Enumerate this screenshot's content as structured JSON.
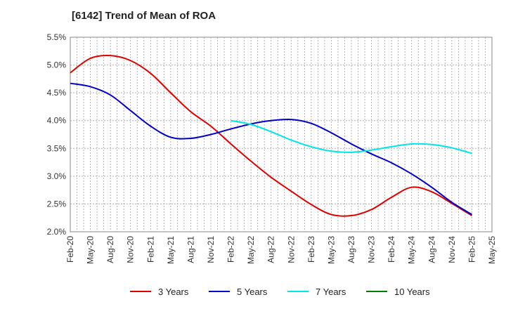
{
  "chart_data": {
    "type": "line",
    "title": "[6142]  Trend of Mean of ROA",
    "xlabel": "",
    "ylabel": "",
    "categories": [
      "Feb-20",
      "May-20",
      "Aug-20",
      "Nov-20",
      "Feb-21",
      "May-21",
      "Aug-21",
      "Nov-21",
      "Feb-22",
      "May-22",
      "Aug-22",
      "Nov-22",
      "Feb-23",
      "May-23",
      "Aug-23",
      "Nov-23",
      "Feb-24",
      "May-24",
      "Aug-24",
      "Nov-24",
      "Feb-25",
      "May-25"
    ],
    "yticks": [
      "2.0%",
      "2.5%",
      "3.0%",
      "3.5%",
      "4.0%",
      "4.5%",
      "5.0%",
      "5.5%"
    ],
    "ylim": [
      2.0,
      5.5
    ],
    "grid": true,
    "series": [
      {
        "name": "3 Years",
        "color": "#e00000",
        "values": [
          4.86,
          5.12,
          5.17,
          5.08,
          4.85,
          4.5,
          4.16,
          3.9,
          3.58,
          3.27,
          2.98,
          2.73,
          2.49,
          2.31,
          2.29,
          2.4,
          2.62,
          2.8,
          2.72,
          2.51,
          2.29,
          null
        ]
      },
      {
        "name": "5 Years",
        "color": "#0000c8",
        "values": [
          4.67,
          4.61,
          4.46,
          4.18,
          3.9,
          3.7,
          3.68,
          3.75,
          3.85,
          3.94,
          4.0,
          4.02,
          3.95,
          3.78,
          3.58,
          3.4,
          3.24,
          3.04,
          2.8,
          2.53,
          2.31,
          null
        ]
      },
      {
        "name": "7 Years",
        "color": "#00e5e5",
        "values": [
          null,
          null,
          null,
          null,
          null,
          null,
          null,
          null,
          4.0,
          3.93,
          3.8,
          3.65,
          3.53,
          3.45,
          3.43,
          3.47,
          3.53,
          3.58,
          3.57,
          3.51,
          3.41,
          null
        ]
      },
      {
        "name": "10 Years",
        "color": "#008000",
        "values": [
          null,
          null,
          null,
          null,
          null,
          null,
          null,
          null,
          null,
          null,
          null,
          null,
          null,
          null,
          null,
          null,
          null,
          null,
          null,
          null,
          null,
          null
        ]
      }
    ]
  }
}
